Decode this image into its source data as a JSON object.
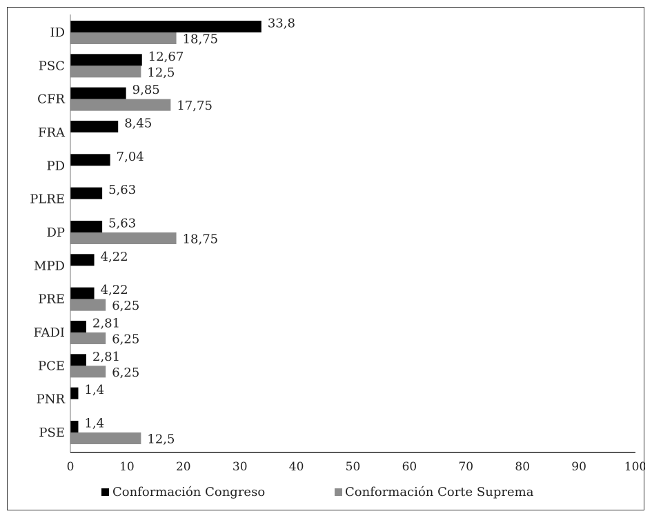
{
  "chart_data": {
    "type": "bar",
    "orientation": "horizontal",
    "categories": [
      "ID",
      "PSC",
      "CFR",
      "FRA",
      "PD",
      "PLRE",
      "DP",
      "MPD",
      "PRE",
      "FADI",
      "PCE",
      "PNR",
      "PSE"
    ],
    "series": [
      {
        "name": "Conformación Congreso",
        "color": "#000000",
        "values": [
          33.8,
          12.67,
          9.85,
          8.45,
          7.04,
          5.63,
          5.63,
          4.22,
          4.22,
          2.81,
          2.81,
          1.4,
          1.4
        ],
        "labels": [
          "33,8",
          "12,67",
          "9,85",
          "8,45",
          "7,04",
          "5,63",
          "5,63",
          "4,22",
          "4,22",
          "2,81",
          "2,81",
          "1,4",
          "1,4"
        ]
      },
      {
        "name": "Conformación Corte Suprema",
        "color": "#8c8c8c",
        "values": [
          18.75,
          12.5,
          17.75,
          null,
          null,
          null,
          18.75,
          null,
          6.25,
          6.25,
          6.25,
          null,
          12.5
        ],
        "labels": [
          "18,75",
          "12,5",
          "17,75",
          null,
          null,
          null,
          "18,75",
          null,
          "6,25",
          "6,25",
          "6,25",
          null,
          "12,5"
        ]
      }
    ],
    "xlim": [
      0,
      100
    ],
    "xticks": [
      "0",
      "10",
      "20",
      "30",
      "40",
      "50",
      "60",
      "70",
      "80",
      "90",
      "100"
    ],
    "title": "",
    "xlabel": "",
    "ylabel": "",
    "grid": false,
    "legend": "bottom"
  }
}
